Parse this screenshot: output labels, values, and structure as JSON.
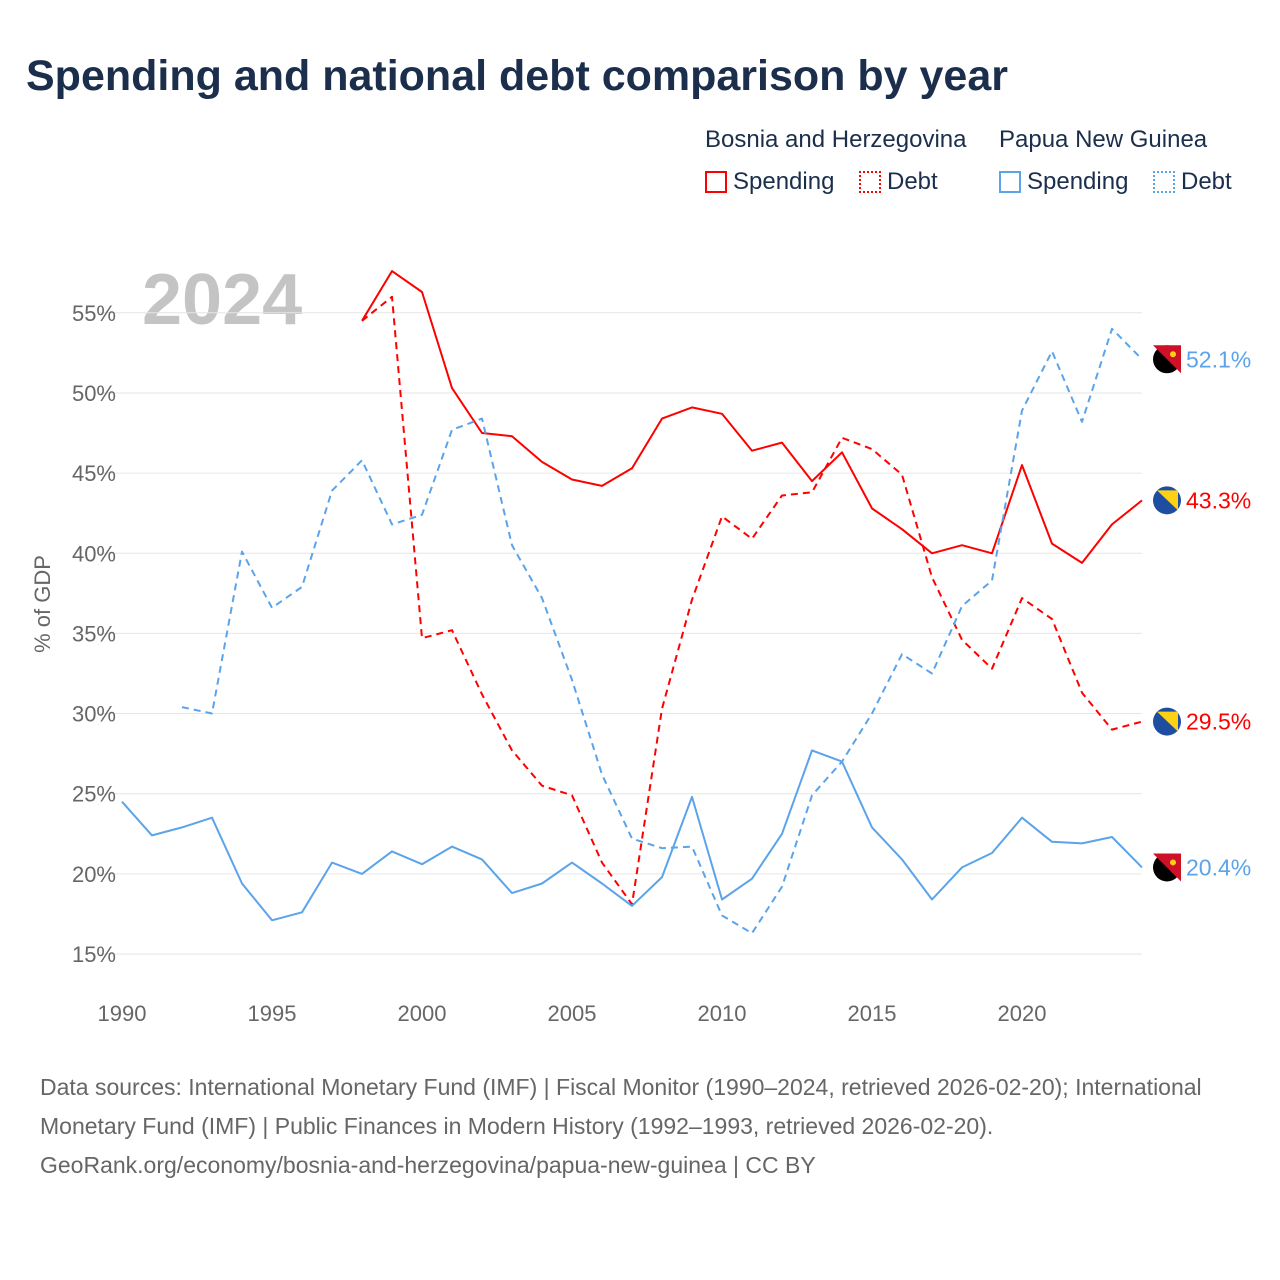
{
  "title": "Spending and national debt comparison by year",
  "legend": {
    "groups": [
      {
        "name": "Bosnia and Herzegovina",
        "items": [
          "Spending",
          "Debt"
        ],
        "color": "#ff0000"
      },
      {
        "name": "Papua New Guinea",
        "items": [
          "Spending",
          "Debt"
        ],
        "color": "#5ba3ea"
      }
    ]
  },
  "year_watermark": "2024",
  "footer": {
    "line1": "Data sources: International Monetary Fund (IMF) | Fiscal Monitor (1990–2024, retrieved 2026-02-20); International Monetary Fund (IMF) | Public Finances in Modern History (1992–1993, retrieved 2026-02-20).",
    "line2": "GeoRank.org/economy/bosnia-and-herzegovina/papua-new-guinea | CC BY"
  },
  "chart_data": {
    "type": "line",
    "title": "Spending and national debt comparison by year",
    "xlabel": "",
    "ylabel": "% of GDP",
    "xlim": [
      1990,
      2024
    ],
    "ylim": [
      15,
      57
    ],
    "xticks": [
      1990,
      1995,
      2000,
      2005,
      2010,
      2015,
      2020
    ],
    "yticks": [
      15,
      20,
      25,
      30,
      35,
      40,
      45,
      50,
      55
    ],
    "grid": true,
    "legend_position": "top-right",
    "series": [
      {
        "name": "Bosnia and Herzegovina Spending",
        "color": "#ff0000",
        "dash": false,
        "start": 1998,
        "end_label": "43.3%",
        "values": [
          54.5,
          57.6,
          56.3,
          50.3,
          47.5,
          47.3,
          45.7,
          44.6,
          44.2,
          45.3,
          48.4,
          49.1,
          48.7,
          46.4,
          46.9,
          44.5,
          46.3,
          42.8,
          41.5,
          40.0,
          40.5,
          40.0,
          45.5,
          40.6,
          39.4,
          41.8,
          43.3
        ]
      },
      {
        "name": "Bosnia and Herzegovina Debt",
        "color": "#ff0000",
        "dash": true,
        "start": 1998,
        "end_label": "29.5%",
        "values": [
          54.5,
          56.0,
          34.7,
          35.2,
          31.2,
          27.7,
          25.5,
          24.9,
          20.7,
          18.1,
          30.3,
          37.1,
          42.3,
          40.9,
          43.6,
          43.8,
          47.2,
          46.5,
          44.9,
          38.5,
          34.6,
          32.8,
          37.2,
          35.9,
          31.3,
          29.0,
          29.5
        ]
      },
      {
        "name": "Papua New Guinea Spending",
        "color": "#5ba3ea",
        "dash": false,
        "start": 1990,
        "end_label": "20.4%",
        "values": [
          24.5,
          22.4,
          22.9,
          23.5,
          19.4,
          17.1,
          17.6,
          20.7,
          20.0,
          21.4,
          20.6,
          21.7,
          20.9,
          18.8,
          19.4,
          20.7,
          19.4,
          18.0,
          19.8,
          24.8,
          18.4,
          19.7,
          22.5,
          27.7,
          27.0,
          22.9,
          20.9,
          18.4,
          20.4,
          21.3,
          23.5,
          22.0,
          21.9,
          22.3,
          20.4
        ]
      },
      {
        "name": "Papua New Guinea Debt",
        "color": "#5ba3ea",
        "dash": true,
        "start": 1992,
        "end_label": "52.1%",
        "values": [
          30.4,
          30.0,
          40.1,
          36.6,
          37.9,
          43.9,
          45.8,
          41.8,
          42.4,
          47.7,
          48.4,
          40.5,
          37.2,
          32.1,
          26.2,
          22.2,
          21.6,
          21.7,
          17.4,
          16.3,
          19.2,
          24.9,
          27.0,
          30.0,
          33.7,
          32.5,
          36.7,
          38.3,
          48.9,
          52.6,
          48.2,
          54.0,
          52.1
        ]
      }
    ]
  }
}
